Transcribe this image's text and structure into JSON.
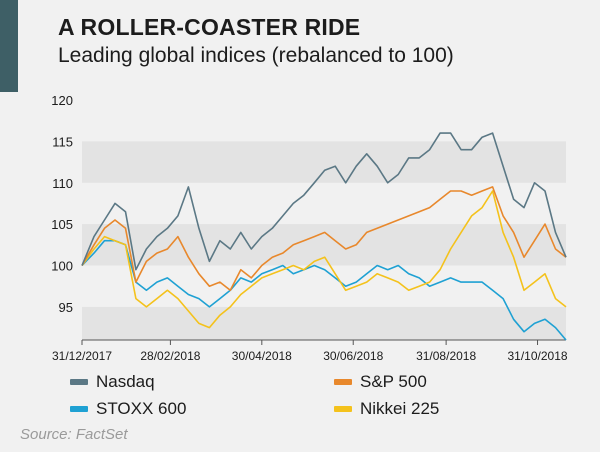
{
  "header": {
    "title": "A ROLLER-COASTER RIDE",
    "subtitle": "Leading global indices (rebalanced to 100)"
  },
  "source": "Source: FactSet",
  "colors": {
    "accent": "#3e5f66",
    "band": "#e3e3e3",
    "background": "#f1f1f1"
  },
  "chart_data": {
    "type": "line",
    "title": "",
    "xlabel": "",
    "ylabel": "",
    "ylim": [
      91,
      120
    ],
    "y_ticks": [
      95,
      100,
      105,
      110,
      115,
      120
    ],
    "x_ticks": [
      "31/12/2017",
      "28/02/2018",
      "30/04/2018",
      "30/06/2018",
      "31/08/2018",
      "31/10/2018"
    ],
    "legend_position": "bottom",
    "grid": "alternating horizontal bands",
    "x": [
      "2017-12-31",
      "2018-01-08",
      "2018-01-15",
      "2018-01-22",
      "2018-01-29",
      "2018-02-05",
      "2018-02-12",
      "2018-02-19",
      "2018-02-26",
      "2018-03-05",
      "2018-03-12",
      "2018-03-19",
      "2018-03-26",
      "2018-04-02",
      "2018-04-09",
      "2018-04-16",
      "2018-04-23",
      "2018-04-30",
      "2018-05-07",
      "2018-05-14",
      "2018-05-21",
      "2018-05-28",
      "2018-06-04",
      "2018-06-11",
      "2018-06-18",
      "2018-06-25",
      "2018-07-02",
      "2018-07-09",
      "2018-07-16",
      "2018-07-23",
      "2018-07-30",
      "2018-08-06",
      "2018-08-13",
      "2018-08-20",
      "2018-08-27",
      "2018-09-03",
      "2018-09-10",
      "2018-09-17",
      "2018-09-24",
      "2018-10-01",
      "2018-10-08",
      "2018-10-15",
      "2018-10-22",
      "2018-10-29",
      "2018-11-05",
      "2018-11-12",
      "2018-11-19"
    ],
    "series": [
      {
        "name": "Nasdaq",
        "color": "#5b7885",
        "values": [
          100,
          103.5,
          105.5,
          107.5,
          106.5,
          99.5,
          102,
          103.5,
          104.5,
          106,
          109.5,
          104.5,
          100.5,
          103,
          102,
          104,
          102,
          103.5,
          104.5,
          106,
          107.5,
          108.5,
          110,
          111.5,
          112,
          110,
          112,
          113.5,
          112,
          110,
          111,
          113,
          113,
          114,
          116,
          116,
          114,
          114,
          115.5,
          116,
          112,
          108,
          107,
          110,
          109,
          104,
          101
        ]
      },
      {
        "name": "S&P 500",
        "color": "#e8882c",
        "values": [
          100,
          102.5,
          104.5,
          105.5,
          104.5,
          98,
          100.5,
          101.5,
          102,
          103.5,
          101,
          99,
          97.5,
          98,
          97,
          99.5,
          98.5,
          100,
          101,
          101.5,
          102.5,
          103,
          103.5,
          104,
          103,
          102,
          102.5,
          104,
          104.5,
          105,
          105.5,
          106,
          106.5,
          107,
          108,
          109,
          109,
          108.5,
          109,
          109.5,
          106,
          104,
          101,
          103,
          105,
          102,
          101
        ]
      },
      {
        "name": "STOXX 600",
        "color": "#1fa1d3",
        "values": [
          100,
          101.5,
          103,
          103,
          102.5,
          98,
          97,
          98,
          98.5,
          97.5,
          96.5,
          96,
          95,
          96,
          97,
          98.5,
          98,
          99,
          99.5,
          100,
          99,
          99.5,
          100,
          99.5,
          98.5,
          97.5,
          98,
          99,
          100,
          99.5,
          100,
          99,
          98.5,
          97.5,
          98,
          98.5,
          98,
          98,
          98,
          97,
          96,
          93.5,
          92,
          93,
          93.5,
          92.5,
          91
        ]
      },
      {
        "name": "Nikkei 225",
        "color": "#f4c21c",
        "values": [
          100,
          102,
          103.5,
          103,
          102.5,
          96,
          95,
          96,
          97,
          96,
          94.5,
          93,
          92.5,
          94,
          95,
          96.5,
          97.5,
          98.5,
          99,
          99.5,
          100,
          99.5,
          100.5,
          101,
          99,
          97,
          97.5,
          98,
          99,
          98.5,
          98,
          97,
          97.5,
          98,
          99.5,
          102,
          104,
          106,
          107,
          109,
          104,
          101,
          97,
          98,
          99,
          96,
          95
        ]
      }
    ]
  }
}
